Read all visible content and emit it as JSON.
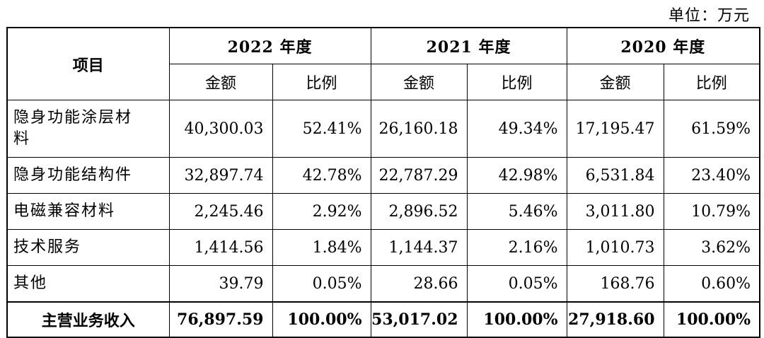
{
  "unit_label": "单位：万元",
  "header": {
    "item": "项目",
    "years": [
      "2022 年度",
      "2021 年度",
      "2020 年度"
    ],
    "amount": "金额",
    "ratio": "比例"
  },
  "rows": [
    {
      "name": "隐身功能涂层材料",
      "name_line1": "隐身功能涂层材",
      "name_line2": "料",
      "a2022": "40,300.03",
      "r2022": "52.41%",
      "a2021": "26,160.18",
      "r2021": "49.34%",
      "a2020": "17,195.47",
      "r2020": "61.59%"
    },
    {
      "name": "隐身功能结构件",
      "a2022": "32,897.74",
      "r2022": "42.78%",
      "a2021": "22,787.29",
      "r2021": "42.98%",
      "a2020": "6,531.84",
      "r2020": "23.40%"
    },
    {
      "name": "电磁兼容材料",
      "a2022": "2,245.46",
      "r2022": "2.92%",
      "a2021": "2,896.52",
      "r2021": "5.46%",
      "a2020": "3,011.80",
      "r2020": "10.79%"
    },
    {
      "name": "技术服务",
      "a2022": "1,414.56",
      "r2022": "1.84%",
      "a2021": "1,144.37",
      "r2021": "2.16%",
      "a2020": "1,010.73",
      "r2020": "3.62%"
    },
    {
      "name": "其他",
      "a2022": "39.79",
      "r2022": "0.05%",
      "a2021": "28.66",
      "r2021": "0.05%",
      "a2020": "168.76",
      "r2020": "0.60%"
    }
  ],
  "total": {
    "name": "主营业务收入",
    "a2022": "76,897.59",
    "r2022": "100.00%",
    "a2021": "53,017.02",
    "r2021": "100.00%",
    "a2020": "27,918.60",
    "r2020": "100.00%"
  }
}
